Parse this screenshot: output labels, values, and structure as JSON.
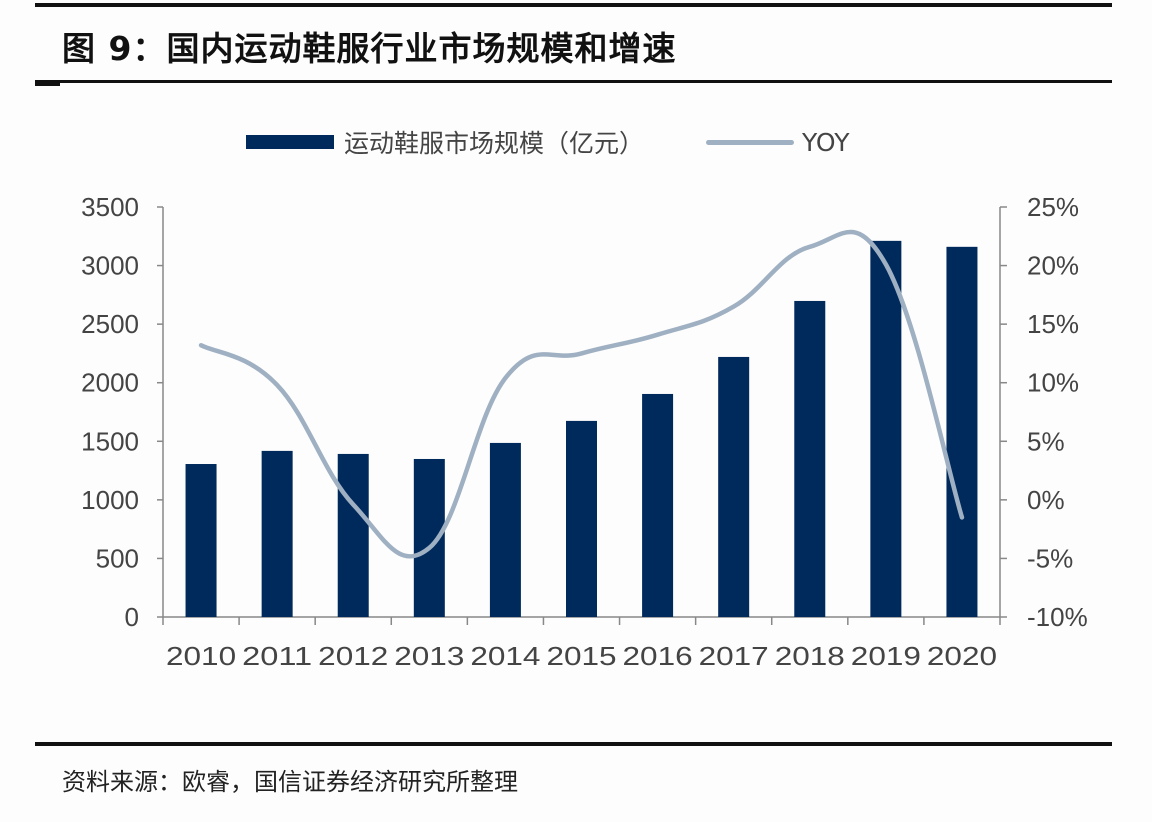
{
  "header": {
    "title": "图 9：国内运动鞋服行业市场规模和增速"
  },
  "legend": {
    "bar_label": "运动鞋服市场规模（亿元）",
    "line_label": "YOY"
  },
  "footer": {
    "source": "资料来源：欧睿，国信证券经济研究所整理"
  },
  "colors": {
    "bar": "#002a5c",
    "line": "#9fb0c2",
    "axis": "#888888"
  },
  "chart_data": {
    "type": "bar",
    "title": "国内运动鞋服行业市场规模和增速",
    "categories": [
      "2010",
      "2011",
      "2012",
      "2013",
      "2014",
      "2015",
      "2016",
      "2017",
      "2018",
      "2019",
      "2020"
    ],
    "series": [
      {
        "name": "运动鞋服市场规模（亿元）",
        "type": "bar",
        "axis": "left",
        "values": [
          1306,
          1418,
          1392,
          1349,
          1486,
          1674,
          1904,
          2220,
          2698,
          3211,
          3160
        ]
      },
      {
        "name": "YOY",
        "type": "line",
        "axis": "right",
        "smooth": true,
        "values": [
          13.2,
          9.8,
          -0.4,
          -4.1,
          10.4,
          12.5,
          14.1,
          16.5,
          21.6,
          20.1,
          -1.5
        ]
      }
    ],
    "xlabel": "",
    "ylabel": "",
    "ylim": [
      0,
      3500
    ],
    "yticks": [
      0,
      500,
      1000,
      1500,
      2000,
      2500,
      3000,
      3500
    ],
    "y2lim": [
      -10,
      25
    ],
    "y2ticks": [
      "-10%",
      "-5%",
      "0%",
      "5%",
      "10%",
      "15%",
      "20%",
      "25%"
    ],
    "grid": false,
    "legend_position": "top"
  }
}
